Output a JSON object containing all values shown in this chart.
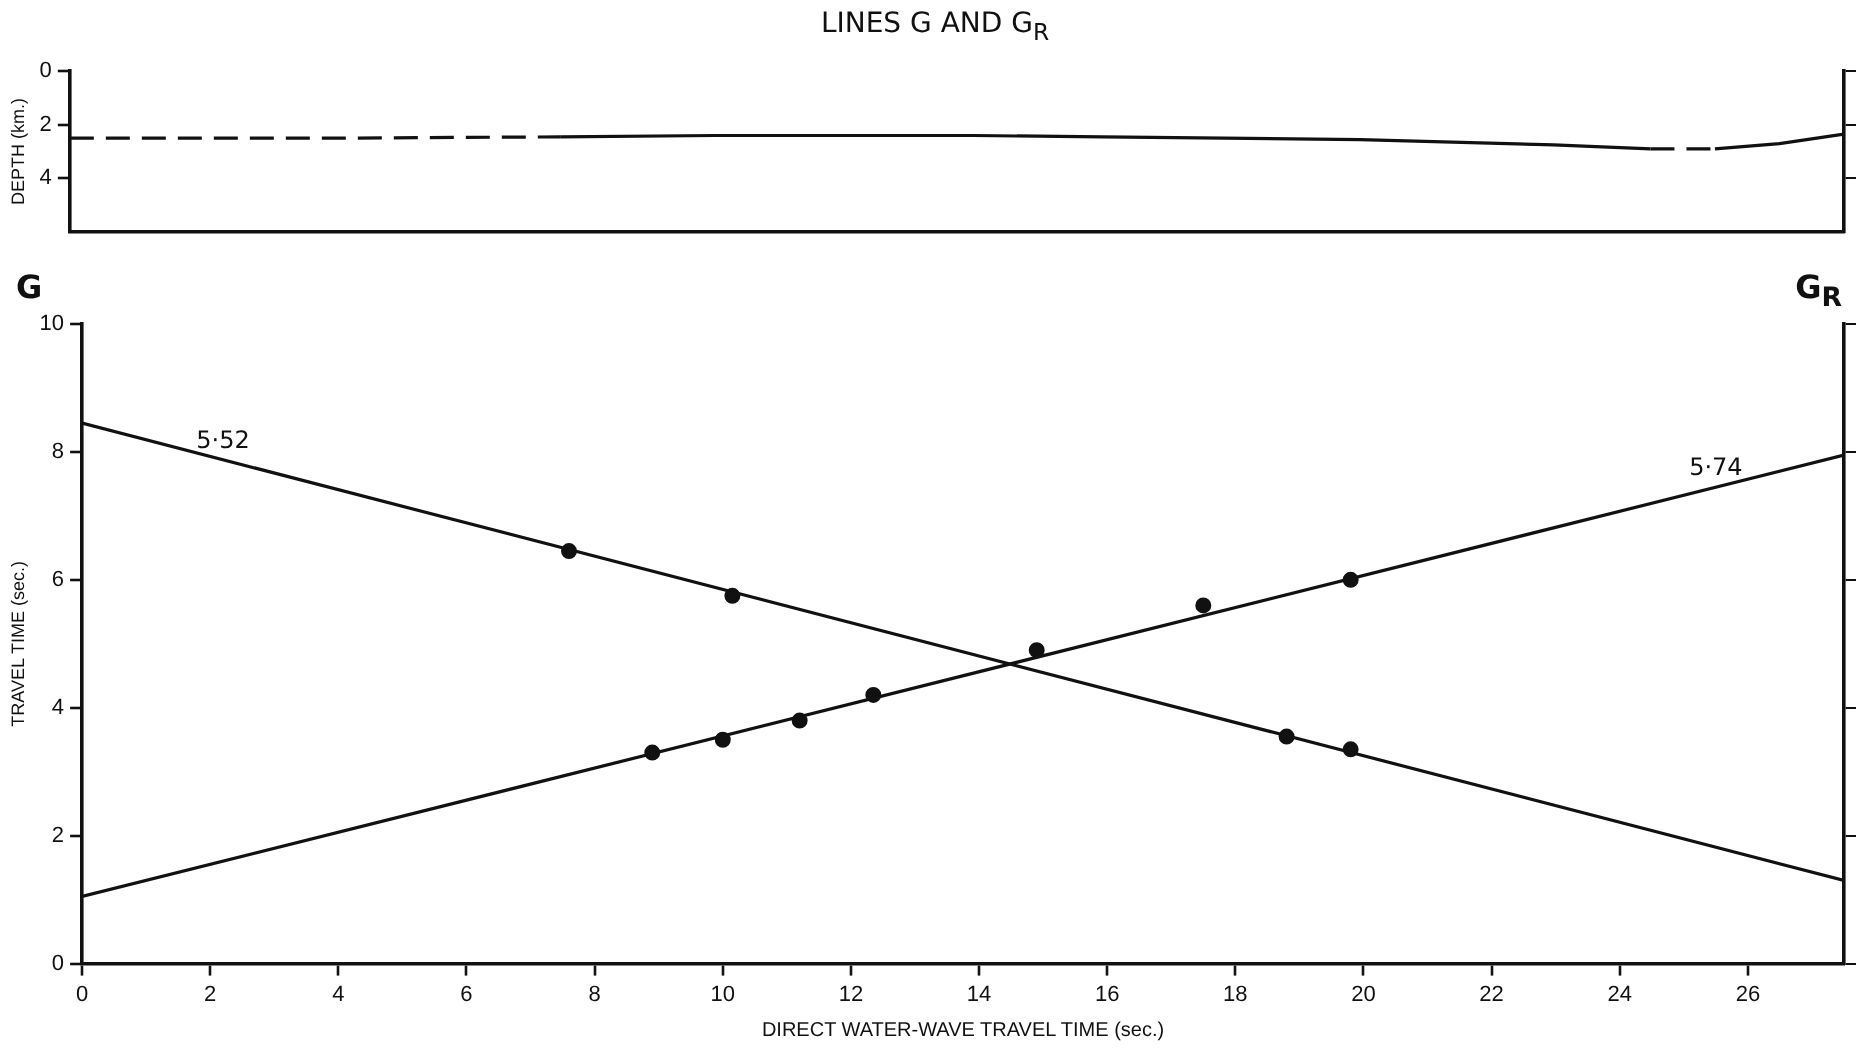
{
  "chart_data": [
    {
      "type": "line",
      "title": "LINES G AND G$_{R}$",
      "ylabel": "DEPTH (km.)",
      "xlim": [
        0,
        27.5
      ],
      "ylim": [
        6,
        0
      ],
      "yticks": [
        0,
        2,
        4
      ],
      "tick_labels": "y",
      "marker": "none",
      "series": [
        {
          "color": "#111111",
          "line_style": "dashed",
          "x": [
            0,
            4,
            7.6
          ],
          "values": [
            2.5,
            2.5,
            2.45
          ]
        },
        {
          "color": "#111111",
          "line_style": "solid",
          "x": [
            7.6,
            10,
            14,
            16,
            20,
            23,
            24.5
          ],
          "values": [
            2.45,
            2.4,
            2.4,
            2.45,
            2.55,
            2.75,
            2.9
          ]
        },
        {
          "color": "#111111",
          "line_style": "dashed",
          "x": [
            24.5,
            25.5
          ],
          "values": [
            2.9,
            2.9
          ]
        },
        {
          "color": "#111111",
          "line_style": "solid",
          "x": [
            25.5,
            26.5,
            27.5
          ],
          "values": [
            2.9,
            2.7,
            2.35
          ]
        }
      ]
    },
    {
      "type": "line",
      "xlabel": "DIRECT WATER-WAVE TRAVEL TIME (sec.)",
      "ylabel": "TRAVEL TIME (sec.)",
      "xlim": [
        0,
        27.5
      ],
      "ylim": [
        0,
        10
      ],
      "xticks": [
        0,
        2,
        4,
        6,
        8,
        10,
        12,
        14,
        16,
        18,
        20,
        22,
        24,
        26
      ],
      "yticks": [
        0,
        2,
        4,
        6,
        8,
        10
      ],
      "marker": "none",
      "line_style": "solid",
      "annotations": [
        "G",
        "G$_{R}$",
        {
          "text": "5·52",
          "x": 2.2,
          "y": 7.88
        },
        {
          "text": "5·74",
          "x": 25.5,
          "y": 7.45
        }
      ],
      "series": [
        {
          "color": "#111111",
          "x": [
            0,
            27.5
          ],
          "values": [
            8.45,
            1.3
          ]
        },
        {
          "color": "#111111",
          "x": [
            0,
            27.5
          ],
          "values": [
            1.05,
            7.95
          ]
        },
        {
          "type": "scatter",
          "marker": "circle",
          "color": "#111111",
          "x": [
            7.6,
            10.15,
            18.8,
            19.8
          ],
          "values": [
            6.45,
            5.75,
            3.55,
            3.35
          ]
        },
        {
          "type": "scatter",
          "marker": "circle",
          "color": "#111111",
          "x": [
            8.9,
            10.0,
            11.2,
            12.35,
            14.9,
            17.5,
            19.8
          ],
          "values": [
            3.3,
            3.5,
            3.8,
            4.2,
            4.9,
            5.6,
            6.0
          ]
        }
      ]
    }
  ]
}
